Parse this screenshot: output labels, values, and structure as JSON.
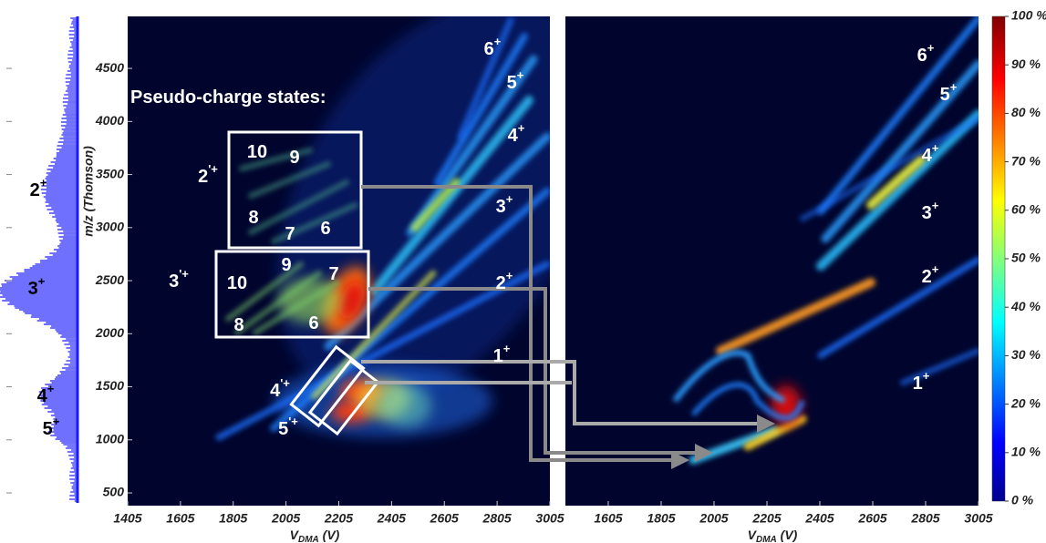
{
  "chart_data": [
    {
      "type": "heatmap",
      "x_label": {
        "main": "V",
        "sub": "DMA",
        "rest": " (V)"
      },
      "y_label": "m/z (Thomson)",
      "xlim": [
        1405,
        3005
      ],
      "xticks": [
        1405,
        1605,
        1805,
        2005,
        2205,
        2405,
        2605,
        2805,
        3005
      ],
      "ylim": [
        380,
        4990
      ],
      "yticks": [
        500,
        1000,
        1500,
        2000,
        2500,
        3000,
        3500,
        4000,
        4500
      ],
      "annotations": [
        {
          "text": "Pseudo-charge states:"
        },
        {
          "text": "10"
        },
        {
          "text": "9"
        },
        {
          "text": "8"
        },
        {
          "text": "7"
        },
        {
          "text": "6"
        },
        {
          "text": "10"
        },
        {
          "text": "9"
        },
        {
          "text": "8"
        },
        {
          "text": "7"
        },
        {
          "text": "6"
        },
        {
          "text": "2",
          "sup": "'+"
        },
        {
          "text": "3",
          "sup": "'+"
        },
        {
          "text": "4",
          "sup": "'+"
        },
        {
          "text": "5",
          "sup": "'+"
        },
        {
          "text": "6",
          "sup": "+"
        },
        {
          "text": "5",
          "sup": "+"
        },
        {
          "text": "4",
          "sup": "+"
        },
        {
          "text": "3",
          "sup": "+"
        },
        {
          "text": "2",
          "sup": "+"
        },
        {
          "text": "1",
          "sup": "+"
        }
      ]
    },
    {
      "type": "heatmap",
      "x_label": {
        "main": "V",
        "sub": "DMA",
        "rest": " (V)"
      },
      "xlim": [
        1443,
        3005
      ],
      "xticks": [
        1605,
        1805,
        2005,
        2205,
        2405,
        2605,
        2805,
        3005
      ],
      "annotations": [
        {
          "text": "6",
          "sup": "+"
        },
        {
          "text": "5",
          "sup": "+"
        },
        {
          "text": "4",
          "sup": "+"
        },
        {
          "text": "3",
          "sup": "+"
        },
        {
          "text": "2",
          "sup": "+"
        },
        {
          "text": "1",
          "sup": "+"
        }
      ]
    },
    {
      "type": "colorbar",
      "ylim": [
        0,
        100
      ],
      "yticks": [
        {
          "value": 0,
          "label": "0 %"
        },
        {
          "value": 10,
          "label": "10 %"
        },
        {
          "value": 20,
          "label": "20 %"
        },
        {
          "value": 30,
          "label": "30 %"
        },
        {
          "value": 40,
          "label": "40 %"
        },
        {
          "value": 50,
          "label": "50 %"
        },
        {
          "value": 60,
          "label": "60 %"
        },
        {
          "value": 70,
          "label": "70 %"
        },
        {
          "value": 80,
          "label": "80 %"
        },
        {
          "value": 90,
          "label": "90 %"
        },
        {
          "value": 100,
          "label": "100 %"
        }
      ]
    },
    {
      "type": "spectrum",
      "annotations": [
        {
          "text": "2",
          "sup": "+"
        },
        {
          "text": "3",
          "sup": "+"
        },
        {
          "text": "4",
          "sup": "+"
        },
        {
          "text": "5",
          "sup": "+"
        }
      ]
    }
  ]
}
